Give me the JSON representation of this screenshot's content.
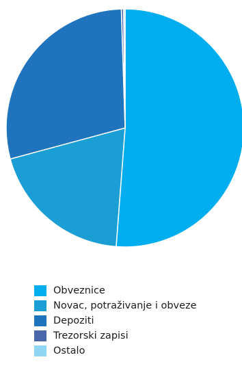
{
  "chart_data": {
    "type": "pie",
    "title": "",
    "slices": [
      {
        "label": "Obveznice",
        "value": 51.2,
        "color": "#00adef"
      },
      {
        "label": "Novac, potraživanje i obveze",
        "value": 19.6,
        "color": "#1a9ed4"
      },
      {
        "label": "Depoziti",
        "value": 28.7,
        "color": "#1f74bd"
      },
      {
        "label": "Trezorski zapisi",
        "value": 0.3,
        "color": "#4a66ad"
      },
      {
        "label": "Ostalo",
        "value": 0.2,
        "color": "#8fd6f5"
      }
    ],
    "legend_position": "bottom"
  }
}
